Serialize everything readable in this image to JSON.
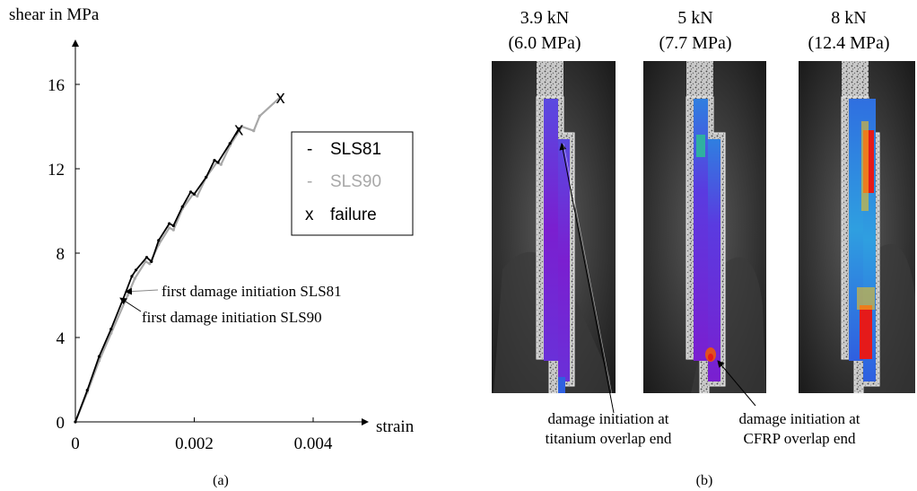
{
  "panel_a": {
    "caption": "(a)",
    "legend": {
      "items": [
        {
          "symbol": "-",
          "label": "SLS81",
          "color": "#000000"
        },
        {
          "symbol": "-",
          "label": "SLS90",
          "color": "#a8a8a8"
        },
        {
          "symbol": "x",
          "label": "failure",
          "color": "#000000"
        }
      ]
    },
    "annotations": {
      "sls81": "first damage initiation SLS81",
      "sls90": "first damage initiation SLS90"
    }
  },
  "panel_b": {
    "caption": "(b)",
    "images": [
      {
        "load": "3.9 kN",
        "stress": "(6.0 MPa)"
      },
      {
        "load": "5 kN",
        "stress": "(7.7 MPa)"
      },
      {
        "load": "8 kN",
        "stress": "(12.4 MPa)"
      }
    ],
    "annotations": [
      {
        "line1": "damage initiation at",
        "line2": "titanium overlap end"
      },
      {
        "line1": "damage initiation at",
        "line2": "CFRP overlap end"
      }
    ],
    "colors": {
      "background": "#2a2a2a",
      "specimen": "#bdbdbd",
      "low": "#7a1fd0",
      "mid": "#2f4fe0",
      "high": "#e51a1a"
    }
  },
  "chart_data": {
    "type": "line",
    "title": "",
    "xlabel": "strain",
    "ylabel": "shear in MPa",
    "xlim": [
      0,
      0.0052
    ],
    "ylim": [
      0,
      18
    ],
    "x_ticks": [
      0,
      0.002,
      0.004
    ],
    "x_tick_labels": [
      "0",
      "0.002",
      "0.004"
    ],
    "y_ticks": [
      0,
      4,
      8,
      12,
      16
    ],
    "y_tick_labels": [
      "0",
      "4",
      "8",
      "12",
      "16"
    ],
    "grid": false,
    "legend_position": "right",
    "series": [
      {
        "name": "SLS81",
        "color": "#000000",
        "points": [
          [
            0,
            0
          ],
          [
            0.0002,
            1.5
          ],
          [
            0.0004,
            3.1
          ],
          [
            0.0006,
            4.4
          ],
          [
            0.0008,
            5.8
          ],
          [
            0.00095,
            6.9
          ],
          [
            0.00102,
            7.2
          ],
          [
            0.0012,
            7.8
          ],
          [
            0.00128,
            7.6
          ],
          [
            0.0014,
            8.6
          ],
          [
            0.00158,
            9.4
          ],
          [
            0.00165,
            9.3
          ],
          [
            0.0018,
            10.2
          ],
          [
            0.00194,
            10.9
          ],
          [
            0.002,
            10.8
          ],
          [
            0.0022,
            11.6
          ],
          [
            0.00234,
            12.4
          ],
          [
            0.0024,
            12.3
          ],
          [
            0.0026,
            13.2
          ],
          [
            0.00275,
            13.9
          ]
        ]
      },
      {
        "name": "SLS90",
        "color": "#a8a8a8",
        "points": [
          [
            0,
            0
          ],
          [
            0.0002,
            1.4
          ],
          [
            0.0004,
            2.9
          ],
          [
            0.0006,
            4.2
          ],
          [
            0.00088,
            6.0
          ],
          [
            0.001,
            6.8
          ],
          [
            0.00118,
            7.6
          ],
          [
            0.00125,
            7.5
          ],
          [
            0.0014,
            8.4
          ],
          [
            0.00158,
            9.2
          ],
          [
            0.00165,
            9.1
          ],
          [
            0.0018,
            10.1
          ],
          [
            0.00198,
            10.8
          ],
          [
            0.00205,
            10.7
          ],
          [
            0.0022,
            11.6
          ],
          [
            0.00238,
            12.3
          ],
          [
            0.00245,
            12.2
          ],
          [
            0.0026,
            13.1
          ],
          [
            0.0028,
            14.0
          ],
          [
            0.003,
            13.8
          ],
          [
            0.0031,
            14.5
          ],
          [
            0.00345,
            15.4
          ]
        ]
      }
    ],
    "failure_points": [
      [
        0.00275,
        13.9
      ],
      [
        0.00345,
        15.4
      ]
    ],
    "damage_initiation_points": {
      "SLS81": [
        0.00095,
        6.2
      ],
      "SLS90": [
        0.00085,
        5.9
      ]
    }
  }
}
